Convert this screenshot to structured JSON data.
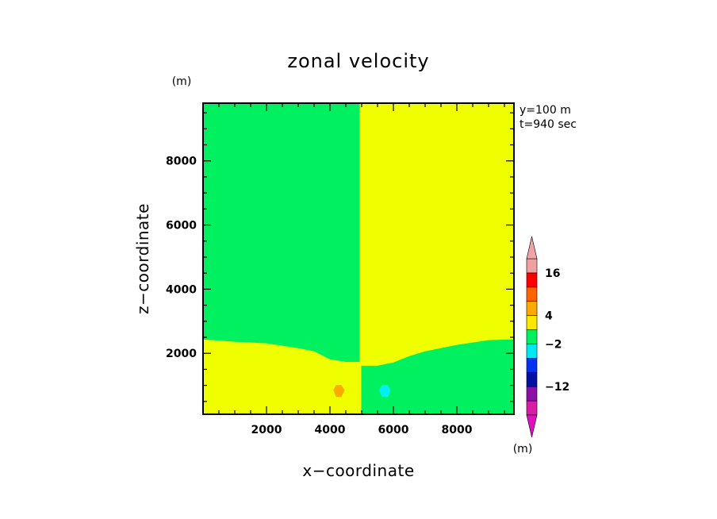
{
  "chart_data": {
    "type": "heatmap",
    "title": "zonal velocity",
    "xlabel": "x−coordinate",
    "ylabel": "z−coordinate",
    "x_unit": "(m)",
    "y_unit": "(m)",
    "xlim": [
      0,
      9800
    ],
    "ylim": [
      100,
      9800
    ],
    "x_ticks": [
      2000,
      4000,
      6000,
      8000
    ],
    "y_ticks": [
      2000,
      4000,
      6000,
      8000
    ],
    "info_lines": [
      "y=100  m",
      "t=940  sec"
    ],
    "colorbar": {
      "unit": "(m)",
      "labels": [
        {
          "value": 16,
          "text": "16"
        },
        {
          "value": 4,
          "text": "4"
        },
        {
          "value": -2,
          "text": "−2"
        },
        {
          "value": -12,
          "text": "−12"
        }
      ],
      "colors_bottom_to_top": [
        "#d81ca6",
        "#8c10a6",
        "#0010a0",
        "#0030f0",
        "#00e8f4",
        "#00f060",
        "#ffe800",
        "#ffaa00",
        "#ff6400",
        "#ff0000",
        "#f0a0a0"
      ],
      "lower_extend_color": "#e010c0",
      "upper_extend_color": "#f3a3a8"
    },
    "regions": [
      {
        "name": "upper-left-green",
        "color": "#00f060",
        "points": [
          [
            0,
            9800
          ],
          [
            4950,
            9800
          ],
          [
            4950,
            1720
          ],
          [
            4500,
            1720
          ],
          [
            4000,
            1800
          ],
          [
            3500,
            2050
          ],
          [
            3000,
            2150
          ],
          [
            2000,
            2300
          ],
          [
            1000,
            2350
          ],
          [
            0,
            2420
          ]
        ]
      },
      {
        "name": "upper-right-yellow",
        "color": "#f0ff00",
        "points": [
          [
            4950,
            9800
          ],
          [
            9800,
            9800
          ],
          [
            9800,
            2420
          ],
          [
            9000,
            2400
          ],
          [
            8000,
            2250
          ],
          [
            7000,
            2050
          ],
          [
            6500,
            1900
          ],
          [
            6000,
            1700
          ],
          [
            5500,
            1600
          ],
          [
            5000,
            1600
          ],
          [
            4950,
            1720
          ]
        ]
      },
      {
        "name": "lower-left-yellow",
        "color": "#f0ff00",
        "points": [
          [
            0,
            2420
          ],
          [
            1000,
            2350
          ],
          [
            2000,
            2300
          ],
          [
            3000,
            2150
          ],
          [
            3500,
            2050
          ],
          [
            4000,
            1800
          ],
          [
            4500,
            1720
          ],
          [
            4950,
            1720
          ],
          [
            5000,
            1500
          ],
          [
            5000,
            100
          ],
          [
            0,
            100
          ]
        ]
      },
      {
        "name": "lower-right-green",
        "color": "#00f060",
        "points": [
          [
            5000,
            1600
          ],
          [
            5500,
            1600
          ],
          [
            6000,
            1700
          ],
          [
            6500,
            1900
          ],
          [
            7000,
            2050
          ],
          [
            8000,
            2250
          ],
          [
            9000,
            2400
          ],
          [
            9800,
            2420
          ],
          [
            9800,
            100
          ],
          [
            5000,
            100
          ],
          [
            5000,
            1500
          ]
        ]
      },
      {
        "name": "orange-blob",
        "color": "#ffaa00",
        "points": [
          [
            4200,
            1000
          ],
          [
            4350,
            1000
          ],
          [
            4450,
            850
          ],
          [
            4350,
            650
          ],
          [
            4200,
            650
          ],
          [
            4120,
            850
          ]
        ]
      },
      {
        "name": "cyan-blob",
        "color": "#00f0f4",
        "points": [
          [
            5650,
            1000
          ],
          [
            5820,
            1000
          ],
          [
            5900,
            850
          ],
          [
            5820,
            650
          ],
          [
            5650,
            650
          ],
          [
            5560,
            850
          ]
        ]
      }
    ]
  }
}
